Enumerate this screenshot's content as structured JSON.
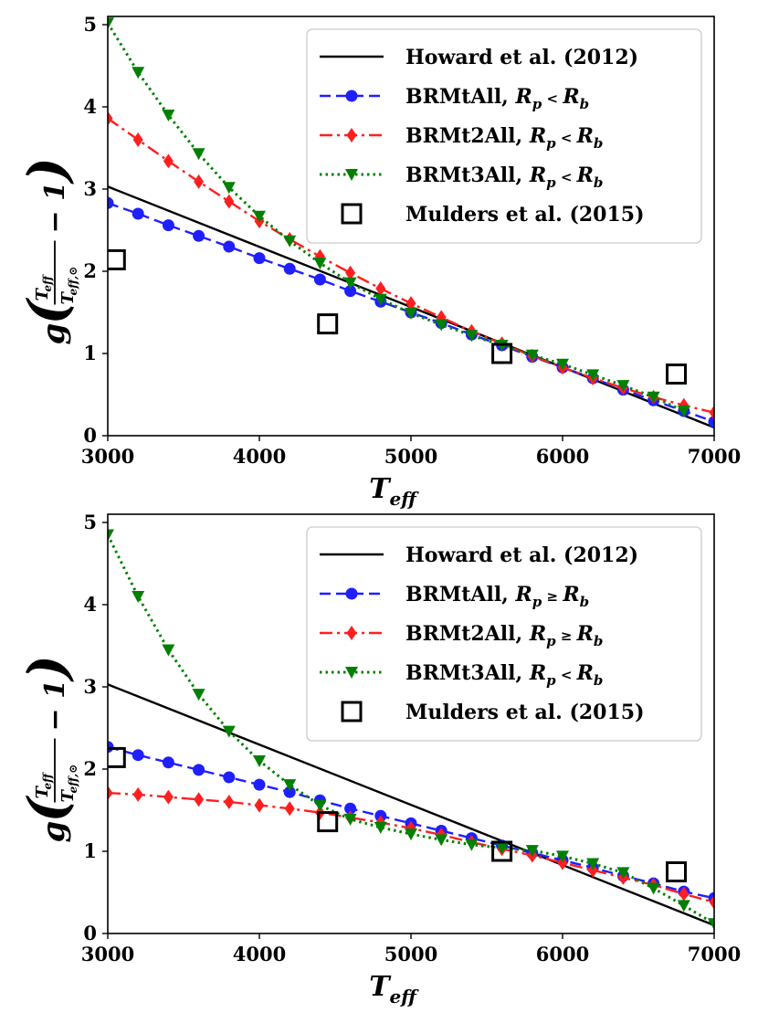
{
  "chart_data": [
    {
      "type": "line",
      "xlabel": "T_eff",
      "ylabel": "g(T_eff / T_eff,⊙ − 1)",
      "xlim": [
        3000,
        7000
      ],
      "ylim": [
        0,
        5.1
      ],
      "xticks": [
        "3000",
        "4000",
        "5000",
        "6000",
        "7000"
      ],
      "yticks": [
        "0",
        "1",
        "2",
        "3",
        "4",
        "5"
      ],
      "grid": false,
      "legend_position": "top-right",
      "series": [
        {
          "name": "Howard et al. (2012)",
          "color": "#000000",
          "style": "solid",
          "marker": "none",
          "x": [
            3000,
            7000
          ],
          "y": [
            3.03,
            0.1
          ]
        },
        {
          "name": "BRMtAll, R_p < R_b",
          "color": "#1f1fff",
          "style": "dashed",
          "marker": "circle",
          "x": [
            3000,
            3200,
            3400,
            3600,
            3800,
            4000,
            4200,
            4400,
            4600,
            4800,
            5000,
            5200,
            5400,
            5600,
            5800,
            6000,
            6200,
            6400,
            6600,
            6800,
            7000
          ],
          "y": [
            2.83,
            2.7,
            2.56,
            2.43,
            2.3,
            2.16,
            2.03,
            1.9,
            1.76,
            1.63,
            1.5,
            1.37,
            1.23,
            1.1,
            0.96,
            0.83,
            0.7,
            0.56,
            0.43,
            0.3,
            0.17
          ]
        },
        {
          "name": "BRMt2All, R_p < R_b",
          "color": "#ff1f1f",
          "style": "dashdot",
          "marker": "diamond",
          "x": [
            3000,
            3200,
            3400,
            3600,
            3800,
            4000,
            4200,
            4400,
            4600,
            4800,
            5000,
            5200,
            5400,
            5600,
            5800,
            6000,
            6200,
            6400,
            6600,
            6800,
            7000
          ],
          "y": [
            3.86,
            3.6,
            3.34,
            3.09,
            2.85,
            2.61,
            2.39,
            2.18,
            1.98,
            1.79,
            1.61,
            1.44,
            1.27,
            1.12,
            0.97,
            0.83,
            0.7,
            0.58,
            0.47,
            0.37,
            0.28
          ]
        },
        {
          "name": "BRMt3All, R_p < R_b",
          "color": "#008000",
          "style": "dotted",
          "marker": "triangle-down",
          "x": [
            3000,
            3200,
            3400,
            3600,
            3800,
            4000,
            4200,
            4400,
            4600,
            4800,
            5000,
            5200,
            5400,
            5600,
            5800,
            6000,
            6200,
            6400,
            6600,
            6800
          ],
          "y": [
            5.02,
            4.42,
            3.9,
            3.43,
            3.02,
            2.67,
            2.37,
            2.1,
            1.86,
            1.66,
            1.49,
            1.35,
            1.22,
            1.1,
            0.98,
            0.87,
            0.74,
            0.61,
            0.47,
            0.3
          ]
        },
        {
          "name": "Mulders et al. (2015)",
          "color": "#000000",
          "style": "none",
          "marker": "square-open",
          "x": [
            3050,
            4450,
            5600,
            6750
          ],
          "y": [
            2.14,
            1.36,
            1.0,
            0.75
          ]
        }
      ]
    },
    {
      "type": "line",
      "xlabel": "T_eff",
      "ylabel": "g(T_eff / T_eff,⊙ − 1)",
      "xlim": [
        3000,
        7000
      ],
      "ylim": [
        0,
        5.1
      ],
      "xticks": [
        "3000",
        "4000",
        "5000",
        "6000",
        "7000"
      ],
      "yticks": [
        "0",
        "1",
        "2",
        "3",
        "4",
        "5"
      ],
      "grid": false,
      "legend_position": "top-right",
      "series": [
        {
          "name": "Howard et al. (2012)",
          "color": "#000000",
          "style": "solid",
          "marker": "none",
          "x": [
            3000,
            7000
          ],
          "y": [
            3.03,
            0.1
          ]
        },
        {
          "name": "BRMtAll, R_p ≥ R_b",
          "color": "#1f1fff",
          "style": "dashed",
          "marker": "circle",
          "x": [
            3000,
            3200,
            3400,
            3600,
            3800,
            4000,
            4200,
            4400,
            4600,
            4800,
            5000,
            5200,
            5400,
            5600,
            5800,
            6000,
            6200,
            6400,
            6600,
            6800,
            7000
          ],
          "y": [
            2.27,
            2.17,
            2.08,
            1.99,
            1.9,
            1.81,
            1.72,
            1.62,
            1.52,
            1.43,
            1.34,
            1.25,
            1.16,
            1.07,
            0.98,
            0.89,
            0.8,
            0.7,
            0.61,
            0.51,
            0.43
          ]
        },
        {
          "name": "BRMt2All, R_p ≥ R_b",
          "color": "#ff1f1f",
          "style": "dashdot",
          "marker": "diamond",
          "x": [
            3000,
            3200,
            3400,
            3600,
            3800,
            4000,
            4200,
            4400,
            4600,
            4800,
            5000,
            5200,
            5400,
            5600,
            5800,
            6000,
            6200,
            6400,
            6600,
            6800,
            7000
          ],
          "y": [
            1.71,
            1.69,
            1.66,
            1.63,
            1.6,
            1.56,
            1.52,
            1.47,
            1.41,
            1.35,
            1.28,
            1.2,
            1.11,
            1.03,
            0.95,
            0.86,
            0.77,
            0.68,
            0.59,
            0.48,
            0.38
          ]
        },
        {
          "name": "BRMt3All, R_p < R_b",
          "color": "#008000",
          "style": "dotted",
          "marker": "triangle-down",
          "x": [
            3000,
            3200,
            3400,
            3600,
            3800,
            4000,
            4200,
            4400,
            4600,
            4800,
            5000,
            5200,
            5400,
            5600,
            5800,
            6000,
            6200,
            6400,
            6600,
            6800,
            7000
          ],
          "y": [
            4.85,
            4.1,
            3.45,
            2.91,
            2.46,
            2.1,
            1.81,
            1.56,
            1.39,
            1.29,
            1.21,
            1.14,
            1.08,
            1.04,
            1.01,
            0.94,
            0.85,
            0.74,
            0.55,
            0.34,
            0.12
          ]
        },
        {
          "name": "Mulders et al. (2015)",
          "color": "#000000",
          "style": "none",
          "marker": "square-open",
          "x": [
            3050,
            4450,
            5600,
            6750
          ],
          "y": [
            2.14,
            1.36,
            1.0,
            0.75
          ]
        }
      ]
    }
  ]
}
